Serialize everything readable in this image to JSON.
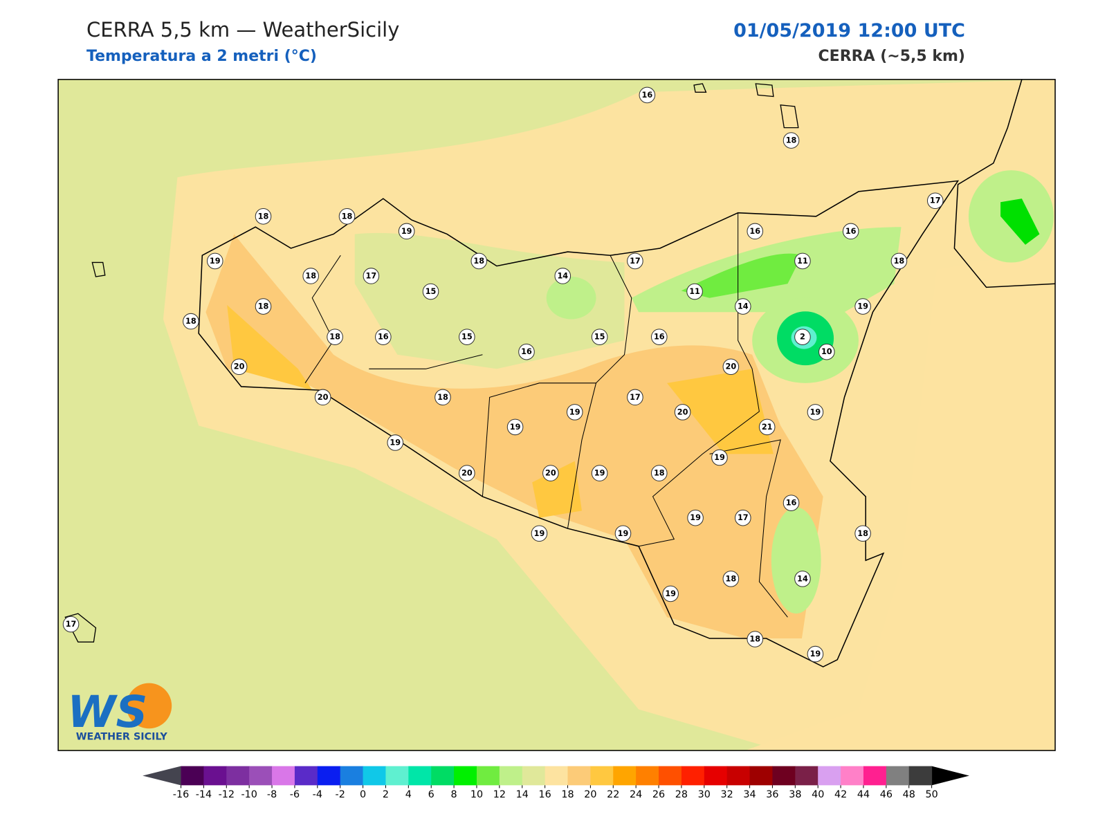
{
  "header": {
    "title": "CERRA 5,5 km — WeatherSicily",
    "subtitle": "Temperatura a 2 metri (°C)",
    "datetime": "01/05/2019 12:00 UTC",
    "model": "CERRA (~5,5 km)"
  },
  "stations": [
    16,
    18,
    17,
    18,
    18,
    19,
    16,
    16,
    19,
    18,
    17,
    18,
    14,
    17,
    11,
    18,
    15,
    11,
    18,
    14,
    19,
    18,
    18,
    16,
    15,
    15,
    16,
    2,
    16,
    10,
    20,
    20,
    20,
    18,
    17,
    20,
    19,
    19,
    19,
    21,
    19,
    19,
    20,
    20,
    19,
    18,
    16,
    19,
    17,
    19,
    19,
    18,
    18,
    14,
    19,
    17,
    18,
    19
  ],
  "colorbar": {
    "ticks": [
      -16,
      -14,
      -12,
      -10,
      -8,
      -6,
      -4,
      -2,
      0,
      2,
      4,
      6,
      8,
      10,
      12,
      14,
      16,
      18,
      20,
      22,
      24,
      26,
      28,
      30,
      32,
      34,
      36,
      38,
      40,
      42,
      44,
      46,
      48,
      50
    ],
    "colors": [
      "#4b0055",
      "#6a1090",
      "#7d2fa0",
      "#9b4fb8",
      "#d977e8",
      "#5a2bc8",
      "#0a1ef0",
      "#1a7fe0",
      "#10c8e8",
      "#5ff0d0",
      "#00e6a8",
      "#00dc64",
      "#00f000",
      "#70ec40",
      "#bff08a",
      "#e0e89a",
      "#fde3a0",
      "#fccb78",
      "#ffc840",
      "#ffa500",
      "#ff8000",
      "#ff5000",
      "#ff2000",
      "#e60000",
      "#c80000",
      "#9e0000",
      "#6e0020",
      "#7a2048",
      "#d9a0f0",
      "#ff80c8",
      "#ff2090",
      "#808080",
      "#3c3c3c"
    ],
    "extend_colors": [
      "#44444f",
      "#000000"
    ]
  },
  "logo": {
    "mark": "WS",
    "text": "WEATHER SICILY"
  }
}
